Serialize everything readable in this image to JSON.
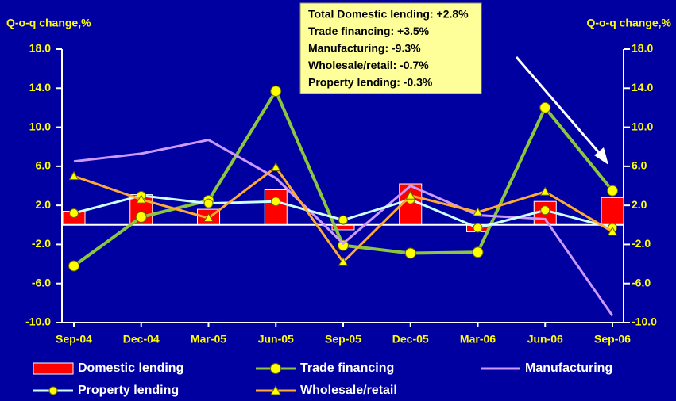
{
  "chart_data": {
    "type": "bar_line",
    "y_label": "Q-o-q change,%",
    "y2_label": "Q-o-q change,%",
    "annotations": [
      "Total Domestic lending: +2.8%",
      "Trade financing: +3.5%",
      "Manufacturing: -9.3%",
      "Wholesale/retail: -0.7%",
      "Property lending: -0.3%"
    ],
    "categories": [
      "Sep-04",
      "Dec-04",
      "Mar-05",
      "Jun-05",
      "Sep-05",
      "Dec-05",
      "Mar-06",
      "Jun-06",
      "Sep-06"
    ],
    "series": [
      {
        "name": "Domestic lending",
        "kind": "bar",
        "color": "#ff0000",
        "values": [
          1.4,
          3.1,
          1.6,
          3.6,
          -0.5,
          4.2,
          -0.7,
          2.4,
          2.8
        ]
      },
      {
        "name": "Trade financing",
        "kind": "line",
        "color": "#8cc63f",
        "marker": "circle",
        "marker_color": "#ffff00",
        "values": [
          -4.2,
          0.8,
          2.5,
          13.7,
          -2.1,
          -2.9,
          -2.8,
          12.0,
          3.5
        ]
      },
      {
        "name": "Manufacturing",
        "kind": "line",
        "color": "#cc99ff",
        "values": [
          6.5,
          7.3,
          8.7,
          4.8,
          -1.9,
          4.0,
          1.0,
          0.6,
          -9.3
        ]
      },
      {
        "name": "Property lending",
        "kind": "line",
        "color": "#ccffff",
        "marker": "circle",
        "marker_color": "#ffff00",
        "values": [
          1.2,
          3.0,
          2.2,
          2.4,
          0.5,
          2.6,
          -0.3,
          1.5,
          -0.3
        ]
      },
      {
        "name": "Wholesale/retail",
        "kind": "line",
        "color": "#ffaa33",
        "marker": "triangle",
        "marker_color": "#ffff00",
        "values": [
          5.0,
          2.6,
          0.7,
          5.9,
          -3.8,
          3.0,
          1.3,
          3.4,
          -0.7
        ]
      }
    ],
    "ylim": [
      -10,
      18
    ],
    "yticks": [
      {
        "value": -10,
        "label": "-10.0"
      },
      {
        "value": -6,
        "label": "-6.0"
      },
      {
        "value": -2,
        "label": "-2.0"
      },
      {
        "value": 2,
        "label": "2.0"
      },
      {
        "value": 6,
        "label": "6.0"
      },
      {
        "value": 10,
        "label": "10.0"
      },
      {
        "value": 14,
        "label": "14.0"
      },
      {
        "value": 18,
        "label": "18.0"
      }
    ],
    "y2lim": [
      -10,
      18
    ],
    "y2ticks": [
      {
        "value": -10,
        "label": "-10.0"
      },
      {
        "value": -6,
        "label": "-6.0"
      },
      {
        "value": -2,
        "label": "-2.0"
      },
      {
        "value": 2,
        "label": "2.0"
      },
      {
        "value": 6,
        "label": "6.0"
      },
      {
        "value": 10,
        "label": "10.0"
      },
      {
        "value": 14,
        "label": "14.0"
      },
      {
        "value": 18,
        "label": "18.0"
      }
    ]
  }
}
